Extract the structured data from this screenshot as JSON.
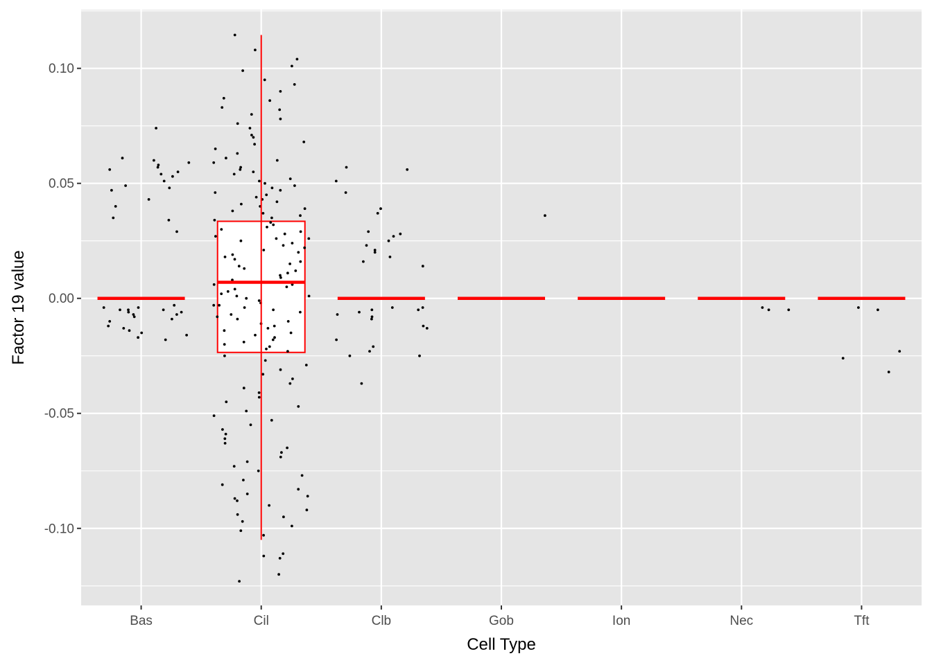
{
  "chart_data": {
    "type": "box-jitter",
    "title": "",
    "xlabel": "Cell Type",
    "ylabel": "Factor 19 value",
    "categories": [
      "Bas",
      "Cil",
      "Clb",
      "Gob",
      "Ion",
      "Nec",
      "Tft"
    ],
    "y_ticks": [
      {
        "value": -0.1,
        "label": "-0.10"
      },
      {
        "value": -0.05,
        "label": "-0.05"
      },
      {
        "value": 0.0,
        "label": "0.00"
      },
      {
        "value": 0.05,
        "label": "0.05"
      },
      {
        "value": 0.1,
        "label": "0.10"
      }
    ],
    "ylim": [
      -0.1335,
      0.1255
    ],
    "grid": true,
    "legend": "none",
    "colors": {
      "panel": "#e5e5e5",
      "grid": "#ffffff",
      "box": "#ff0000",
      "box_fill": "#ffffff",
      "point": "#000000"
    },
    "boxes": [
      {
        "category": "Bas",
        "lower_whisker": 0.0,
        "q1": 0.0,
        "median": 0.0,
        "q3": 0.0,
        "upper_whisker": 0.0
      },
      {
        "category": "Cil",
        "lower_whisker": -0.105,
        "q1": -0.0235,
        "median": 0.007,
        "q3": 0.0335,
        "upper_whisker": 0.1145
      },
      {
        "category": "Clb",
        "lower_whisker": 0.0,
        "q1": 0.0,
        "median": 0.0,
        "q3": 0.0,
        "upper_whisker": 0.0
      },
      {
        "category": "Gob",
        "lower_whisker": 0.0,
        "q1": 0.0,
        "median": 0.0,
        "q3": 0.0,
        "upper_whisker": 0.0
      },
      {
        "category": "Ion",
        "lower_whisker": 0.0,
        "q1": 0.0,
        "median": 0.0,
        "q3": 0.0,
        "upper_whisker": 0.0
      },
      {
        "category": "Nec",
        "lower_whisker": 0.0,
        "q1": 0.0,
        "median": 0.0,
        "q3": 0.0,
        "upper_whisker": 0.0
      },
      {
        "category": "Tft",
        "lower_whisker": 0.0,
        "q1": 0.0,
        "median": 0.0,
        "q3": 0.0,
        "upper_whisker": 0.0
      }
    ],
    "points": {
      "Bas": [
        0.074,
        0.061,
        0.06,
        0.059,
        0.058,
        0.057,
        0.056,
        0.055,
        0.054,
        0.053,
        0.051,
        0.049,
        0.048,
        0.047,
        0.043,
        0.04,
        0.035,
        0.034,
        0.029,
        -0.003,
        -0.004,
        -0.004,
        -0.005,
        -0.005,
        -0.005,
        -0.006,
        -0.006,
        -0.007,
        -0.007,
        -0.008,
        -0.009,
        -0.01,
        -0.012,
        -0.013,
        -0.014,
        -0.015,
        -0.016,
        -0.017,
        -0.018
      ],
      "Cil": [
        0.1145,
        0.108,
        0.104,
        0.101,
        0.099,
        0.095,
        0.093,
        0.09,
        0.087,
        0.086,
        0.083,
        0.082,
        0.08,
        0.078,
        0.076,
        0.074,
        0.071,
        0.07,
        0.068,
        0.067,
        0.065,
        0.063,
        0.061,
        0.06,
        0.059,
        0.057,
        0.056,
        0.055,
        0.054,
        0.052,
        0.051,
        0.05,
        0.049,
        0.048,
        0.047,
        0.046,
        0.045,
        0.044,
        0.043,
        0.042,
        0.041,
        0.04,
        0.039,
        0.038,
        0.037,
        0.036,
        0.035,
        0.034,
        0.033,
        0.032,
        0.031,
        0.03,
        0.029,
        0.028,
        0.027,
        0.026,
        0.025,
        0.024,
        0.023,
        0.022,
        0.021,
        0.02,
        0.019,
        0.018,
        0.017,
        0.016,
        0.015,
        0.014,
        0.013,
        0.012,
        0.011,
        0.01,
        0.009,
        0.008,
        0.007,
        0.006,
        0.005,
        0.004,
        0.003,
        0.002,
        0.001,
        0.0,
        -0.001,
        -0.002,
        -0.003,
        -0.004,
        -0.005,
        -0.006,
        -0.007,
        -0.008,
        -0.009,
        -0.01,
        -0.011,
        -0.012,
        -0.013,
        -0.014,
        -0.015,
        -0.016,
        -0.017,
        -0.018,
        -0.019,
        -0.02,
        -0.021,
        -0.022,
        -0.023,
        -0.025,
        -0.027,
        -0.029,
        -0.031,
        -0.033,
        -0.035,
        -0.037,
        -0.039,
        -0.041,
        -0.043,
        -0.045,
        -0.047,
        -0.049,
        -0.051,
        -0.053,
        -0.055,
        -0.057,
        -0.059,
        -0.061,
        -0.063,
        -0.065,
        -0.067,
        -0.069,
        -0.071,
        -0.073,
        -0.075,
        -0.077,
        -0.079,
        -0.081,
        -0.083,
        -0.085,
        -0.086,
        -0.087,
        -0.088,
        -0.09,
        -0.092,
        -0.094,
        -0.095,
        -0.097,
        -0.099,
        -0.101,
        -0.103,
        -0.111,
        -0.112,
        -0.113,
        -0.12,
        -0.123
      ],
      "Clb": [
        0.057,
        0.056,
        0.051,
        0.046,
        0.039,
        0.037,
        0.029,
        0.028,
        0.027,
        0.025,
        0.023,
        0.021,
        0.02,
        0.018,
        0.016,
        0.014,
        -0.004,
        -0.004,
        -0.005,
        -0.005,
        -0.006,
        -0.007,
        -0.008,
        -0.009,
        -0.012,
        -0.013,
        -0.018,
        -0.021,
        -0.023,
        -0.025,
        -0.025,
        -0.037
      ],
      "Gob": [
        0.036
      ],
      "Ion": [],
      "Nec": [
        -0.004,
        -0.005,
        -0.005
      ],
      "Tft": [
        -0.004,
        -0.005,
        -0.023,
        -0.026,
        -0.032
      ]
    }
  }
}
